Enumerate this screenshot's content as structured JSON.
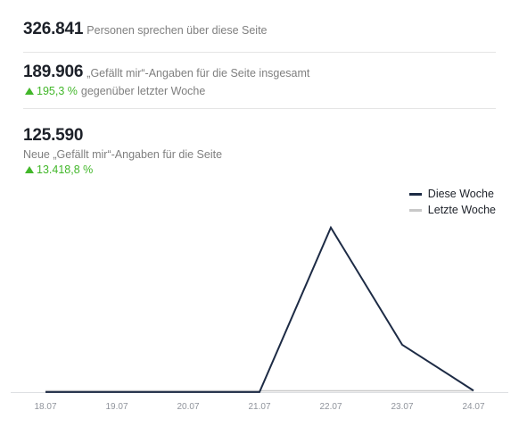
{
  "stats": {
    "talking": {
      "value": "326.841",
      "label": "Personen sprechen über diese Seite"
    },
    "likes_total": {
      "value": "189.906",
      "label": "„Gefällt mir“-Angaben für die Seite insgesamt",
      "change": "195,3 %",
      "change_label": "gegenüber letzter Woche"
    },
    "new_likes": {
      "value": "125.590",
      "label": "Neue „Gefällt mir“-Angaben für die Seite",
      "change": "13.418,8 %"
    }
  },
  "colors": {
    "this_week": "#1d2b45",
    "last_week": "#c8c8c8",
    "positive": "#42b72a"
  },
  "icons": {
    "change": "triangle-up-icon"
  },
  "chart_data": {
    "type": "line",
    "categories": [
      "18.07",
      "19.07",
      "20.07",
      "21.07",
      "22.07",
      "23.07",
      "24.07"
    ],
    "series": [
      {
        "name": "Diese Woche",
        "values": [
          100,
          100,
          100,
          100,
          125000,
          36000,
          1200
        ]
      },
      {
        "name": "Letzte Woche",
        "values": [
          1000,
          1000,
          1000,
          1000,
          1000,
          1000,
          1000
        ]
      }
    ],
    "ylim": [
      0,
      135000
    ],
    "legend": "top-right",
    "grid": false
  }
}
